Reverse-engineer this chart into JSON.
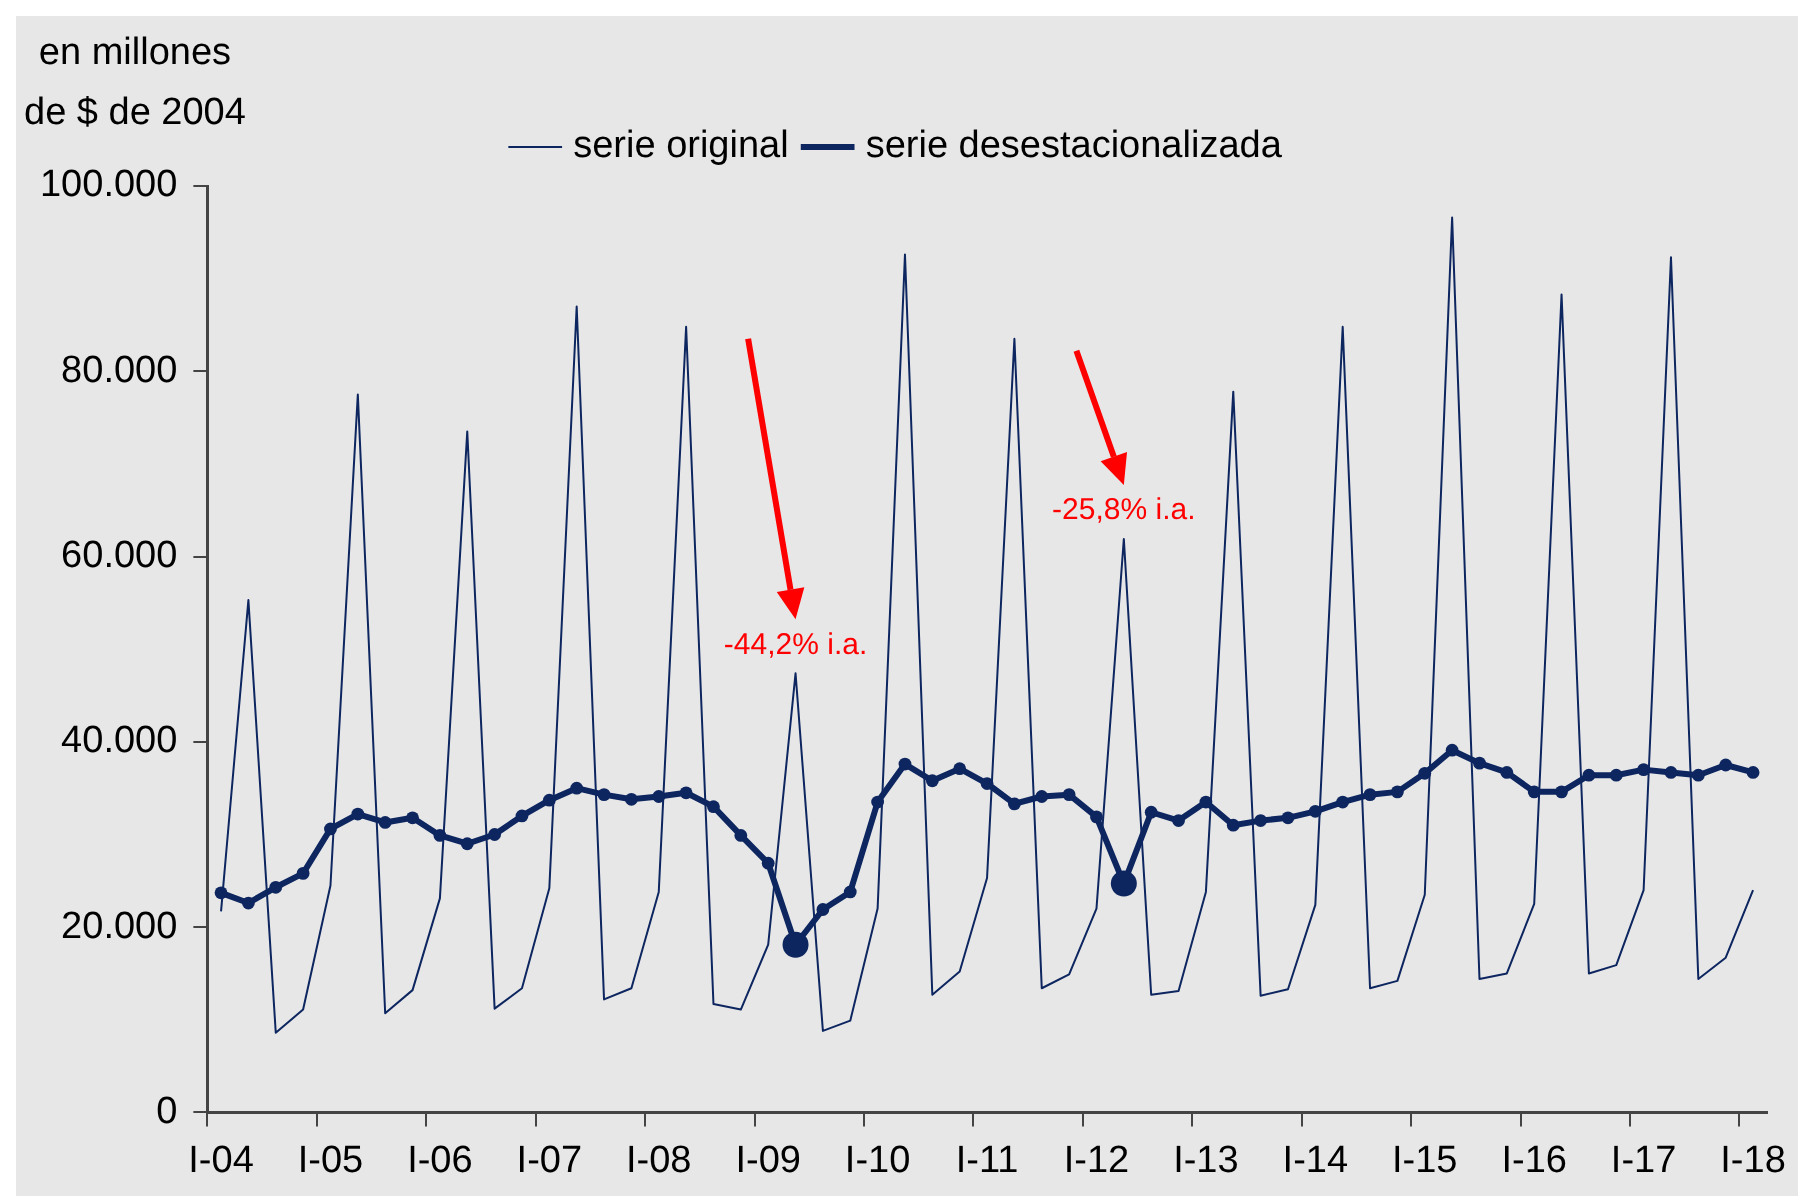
{
  "chart_data": {
    "type": "line",
    "ylabel": "en millones\nde $ de 2004",
    "categories": [
      "I-04",
      null,
      null,
      null,
      "I-05",
      null,
      null,
      null,
      "I-06",
      null,
      null,
      null,
      "I-07",
      null,
      null,
      null,
      "I-08",
      null,
      null,
      null,
      "I-09",
      null,
      null,
      null,
      "I-10",
      null,
      null,
      null,
      "I-11",
      null,
      null,
      null,
      "I-12",
      null,
      null,
      null,
      "I-13",
      null,
      null,
      null,
      "I-14",
      null,
      null,
      null,
      "I-15",
      null,
      null,
      null,
      "I-16",
      null,
      null,
      null,
      "I-17",
      null,
      null,
      null,
      "I-18"
    ],
    "series": [
      {
        "name": "serie original",
        "color": "#0d2660",
        "marker": "none",
        "values": [
          21700,
          55300,
          8600,
          11100,
          24500,
          77500,
          10700,
          13200,
          23100,
          73500,
          11200,
          13400,
          24200,
          87000,
          12200,
          13400,
          23800,
          84800,
          11700,
          11100,
          18100,
          47400,
          8800,
          9900,
          22000,
          92600,
          12700,
          15200,
          25300,
          83500,
          13400,
          14900,
          22000,
          61900,
          12700,
          13100,
          23800,
          77800,
          12600,
          13300,
          22400,
          84800,
          13400,
          14200,
          23500,
          96600,
          14400,
          15000,
          22500,
          88300,
          15000,
          15900,
          24000,
          92300,
          14400,
          16700,
          24000
        ]
      },
      {
        "name": "serie desestacionalizada",
        "color": "#0d2660",
        "marker": "circle",
        "values": [
          23700,
          22600,
          24300,
          25800,
          30600,
          32200,
          31300,
          31800,
          29900,
          29000,
          30000,
          32000,
          33700,
          35000,
          34300,
          33800,
          34100,
          34500,
          33000,
          29900,
          26900,
          18100,
          21900,
          23800,
          33500,
          37600,
          35800,
          37100,
          35500,
          33300,
          34100,
          34300,
          31900,
          24700,
          32400,
          31500,
          33500,
          31000,
          31500,
          31800,
          32500,
          33500,
          34300,
          34600,
          36600,
          39100,
          37700,
          36700,
          34600,
          34600,
          36400,
          36400,
          37000,
          36700,
          36400,
          37500,
          36700
        ]
      }
    ],
    "ylim": [
      0,
      100000
    ],
    "yticks": [
      0,
      {
        "value": 20000,
        "label": "20.000"
      },
      {
        "value": 40000,
        "label": "40.000"
      },
      {
        "value": 60000,
        "label": "60.000"
      },
      {
        "value": 80000,
        "label": "80.000"
      },
      {
        "value": 100000,
        "label": "100.000"
      }
    ],
    "grid": false,
    "legend": "top",
    "line_style": "solid",
    "annotations": [
      "-44,2% i.a.",
      "-25,8% i.a."
    ]
  }
}
